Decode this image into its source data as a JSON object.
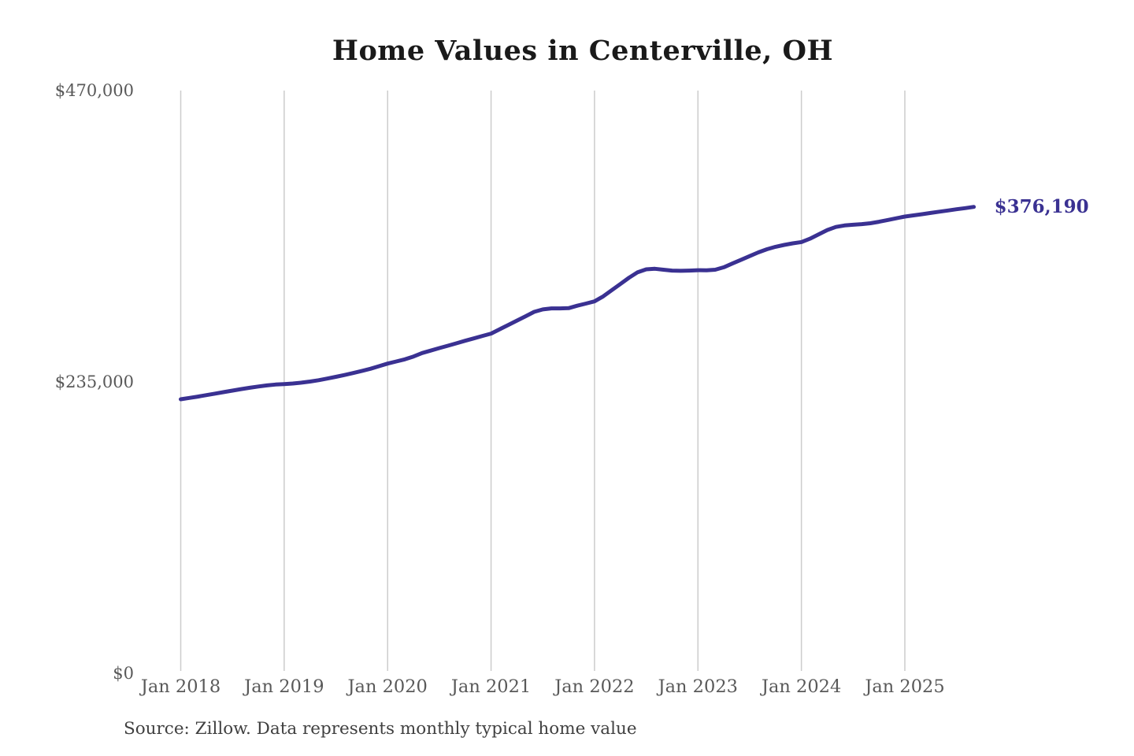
{
  "page": {
    "title": "Home Values in Centerville, OH",
    "source_note": "Source: Zillow. Data represents monthly typical home value"
  },
  "colors": {
    "line": "#3a3192",
    "end_label": "#3a3192",
    "title": "#1a1a1a",
    "axis_label": "#595959",
    "gridline": "#cccccc",
    "source": "#404040",
    "background": "#ffffff"
  },
  "chart_data": {
    "type": "line",
    "title": "Home Values in Centerville, OH",
    "x_unit": "month",
    "x_start": "Jan 2018",
    "x_end": "Sep 2025",
    "x_tick_labels": [
      "Jan 2018",
      "Jan 2019",
      "Jan 2020",
      "Jan 2021",
      "Jan 2022",
      "Jan 2023",
      "Jan 2024",
      "Jan 2025"
    ],
    "x_tick_indices": [
      0,
      12,
      24,
      36,
      48,
      60,
      72,
      84
    ],
    "y_tick_labels": [
      "$0",
      "$235,000",
      "$470,000"
    ],
    "y_tick_values": [
      0,
      235000,
      470000
    ],
    "ylim": [
      0,
      470000
    ],
    "grid": "vertical-only",
    "legend": "none",
    "end_label": "$376,190",
    "final_value": 376190,
    "series": [
      {
        "name": "Monthly typical home value",
        "values": [
          221000,
          222100,
          223200,
          224400,
          225600,
          226800,
          228000,
          229200,
          230300,
          231300,
          232200,
          232900,
          233300,
          233700,
          234400,
          235300,
          236400,
          237700,
          239100,
          240600,
          242200,
          243800,
          245600,
          247700,
          249800,
          251500,
          253200,
          255500,
          258300,
          260300,
          262300,
          264200,
          266200,
          268200,
          270100,
          272100,
          274000,
          277500,
          281000,
          284500,
          288000,
          291500,
          293500,
          294300,
          294300,
          294500,
          296500,
          298200,
          300000,
          304000,
          309000,
          314000,
          319000,
          323500,
          325800,
          326300,
          325500,
          324800,
          324600,
          324800,
          325100,
          325000,
          325500,
          327500,
          330500,
          333500,
          336500,
          339500,
          342000,
          344000,
          345500,
          346800,
          347800,
          350500,
          354000,
          357500,
          360000,
          361200,
          361800,
          362300,
          363000,
          364200,
          365600,
          367000,
          368400,
          369300,
          370300,
          371300,
          372300,
          373300,
          374300,
          375200,
          376190
        ]
      }
    ]
  }
}
